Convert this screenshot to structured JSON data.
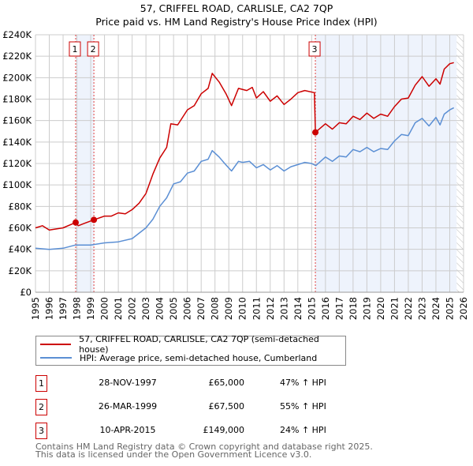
{
  "title": "57, CRIFFEL ROAD, CARLISLE, CA2 7QP",
  "subtitle": "Price paid vs. HM Land Registry's House Price Index (HPI)",
  "colors": {
    "property": "#cc0000",
    "hpi": "#5b8fd4",
    "shade": "#eef3fc"
  },
  "chart_data": {
    "type": "line",
    "xlim": [
      1995,
      2026
    ],
    "ylim": [
      0,
      240000
    ],
    "x_ticks": [
      "1995",
      "1996",
      "1997",
      "1998",
      "1999",
      "2000",
      "2001",
      "2002",
      "2003",
      "2004",
      "2005",
      "2006",
      "2007",
      "2008",
      "2009",
      "2010",
      "2011",
      "2012",
      "2013",
      "2014",
      "2015",
      "2016",
      "2017",
      "2018",
      "2019",
      "2020",
      "2021",
      "2022",
      "2023",
      "2024",
      "2025",
      "2026"
    ],
    "y_ticks": [
      "£0",
      "£20K",
      "£40K",
      "£60K",
      "£80K",
      "£100K",
      "£120K",
      "£140K",
      "£160K",
      "£180K",
      "£200K",
      "£220K",
      "£240K"
    ],
    "grid": true,
    "shaded_ranges": [
      [
        1997.91,
        1999.23
      ],
      [
        2015.27,
        2025.5
      ]
    ],
    "forecast_hatch_from": 2025.5,
    "series": [
      {
        "name": "57, CRIFFEL ROAD, CARLISLE, CA2 7QP (semi-detached house)",
        "color": "#cc0000",
        "x": [
          1995,
          1995.5,
          1996,
          1997,
          1997.91,
          1998.1,
          1998.5,
          1999.23,
          2000,
          2000.5,
          2001,
          2001.5,
          2002,
          2002.5,
          2003,
          2003.5,
          2004,
          2004.5,
          2004.8,
          2005.3,
          2006,
          2006.5,
          2007,
          2007.5,
          2007.8,
          2008.3,
          2008.8,
          2009.2,
          2009.7,
          2010.3,
          2010.7,
          2011,
          2011.5,
          2012,
          2012.5,
          2013,
          2013.5,
          2014,
          2014.5,
          2015.2,
          2015.27,
          2016,
          2016.5,
          2017,
          2017.5,
          2018,
          2018.5,
          2019,
          2019.5,
          2020,
          2020.5,
          2021,
          2021.5,
          2022,
          2022.5,
          2023,
          2023.5,
          2024,
          2024.3,
          2024.6,
          2025,
          2025.3
        ],
        "y": [
          60000,
          62000,
          58000,
          60000,
          65000,
          62000,
          64000,
          67500,
          71000,
          71000,
          74000,
          73000,
          77000,
          83000,
          92000,
          110000,
          125000,
          135000,
          157000,
          156000,
          170000,
          174000,
          185000,
          190000,
          204000,
          196000,
          185000,
          174000,
          190000,
          188000,
          191000,
          181000,
          187000,
          178000,
          183000,
          175000,
          180000,
          186000,
          188000,
          186000,
          149000,
          157000,
          152000,
          158000,
          157000,
          164000,
          161000,
          167000,
          162000,
          166000,
          164000,
          173000,
          180000,
          181000,
          193000,
          201000,
          192000,
          199000,
          194000,
          208000,
          213000,
          214000
        ]
      },
      {
        "name": "HPI: Average price, semi-detached house, Cumberland",
        "color": "#5b8fd4",
        "x": [
          1995,
          1996,
          1997,
          1997.9,
          1998.5,
          1999,
          2000,
          2001,
          2002,
          2003,
          2003.5,
          2004,
          2004.5,
          2005,
          2005.5,
          2006,
          2006.5,
          2007,
          2007.5,
          2007.8,
          2008.3,
          2008.7,
          2009.2,
          2009.7,
          2010,
          2010.5,
          2011,
          2011.5,
          2012,
          2012.5,
          2013,
          2013.5,
          2014,
          2014.5,
          2015,
          2015.3,
          2016,
          2016.5,
          2017,
          2017.5,
          2018,
          2018.5,
          2019,
          2019.5,
          2020,
          2020.5,
          2021,
          2021.5,
          2022,
          2022.5,
          2023,
          2023.5,
          2024,
          2024.3,
          2024.6,
          2025,
          2025.3
        ],
        "y": [
          41000,
          40000,
          41000,
          44000,
          44000,
          44000,
          46000,
          47000,
          50000,
          60000,
          68000,
          80000,
          88000,
          101000,
          103000,
          111000,
          113000,
          122000,
          124000,
          132000,
          126000,
          120000,
          113000,
          122000,
          121000,
          122000,
          116000,
          119000,
          114000,
          118000,
          113000,
          117000,
          119000,
          121000,
          120000,
          118000,
          126000,
          122000,
          127000,
          126000,
          133000,
          131000,
          135000,
          131000,
          134000,
          133000,
          141000,
          147000,
          146000,
          158000,
          162000,
          155000,
          163000,
          156000,
          166000,
          170000,
          172000
        ]
      }
    ],
    "markers": [
      {
        "label": "1",
        "x": 1997.91,
        "y": 65000
      },
      {
        "label": "2",
        "x": 1999.23,
        "y": 67500
      },
      {
        "label": "3",
        "x": 2015.27,
        "y": 149000
      }
    ]
  },
  "legend": {
    "property": "57, CRIFFEL ROAD, CARLISLE, CA2 7QP (semi-detached house)",
    "hpi": "HPI: Average price, semi-detached house, Cumberland"
  },
  "transactions": [
    {
      "num": "1",
      "date": "28-NOV-1997",
      "price": "£65,000",
      "hpi": "47% ↑ HPI"
    },
    {
      "num": "2",
      "date": "26-MAR-1999",
      "price": "£67,500",
      "hpi": "55% ↑ HPI"
    },
    {
      "num": "3",
      "date": "10-APR-2015",
      "price": "£149,000",
      "hpi": "24% ↑ HPI"
    }
  ],
  "footer": {
    "line1": "Contains HM Land Registry data © Crown copyright and database right 2025.",
    "line2": "This data is licensed under the Open Government Licence v3.0."
  }
}
